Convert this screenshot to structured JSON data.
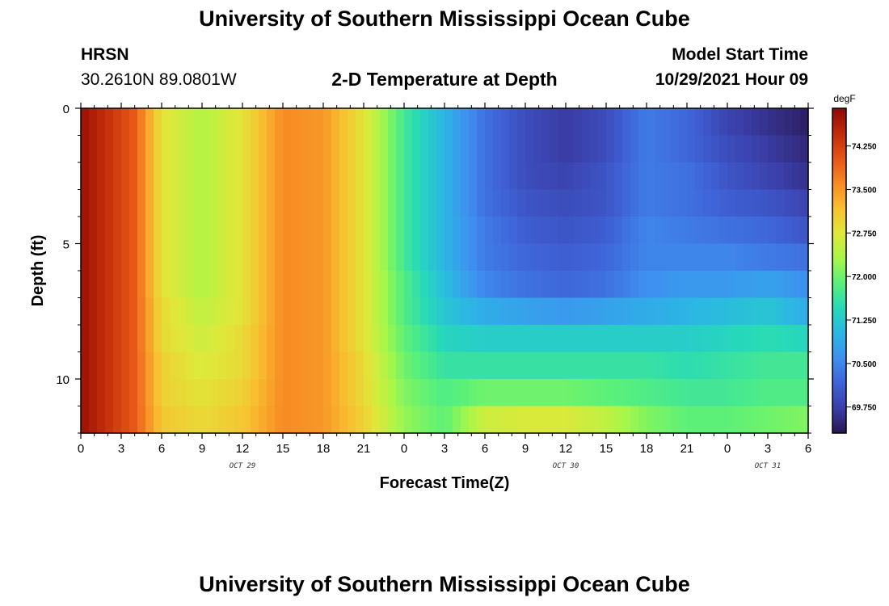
{
  "page": {
    "title_top": "University of Southern Mississippi Ocean Cube",
    "title_bottom": "University of Southern Mississippi Ocean Cube"
  },
  "station": {
    "name": "HRSN",
    "coords": "30.2610N  89.0801W"
  },
  "model_start": {
    "label": "Model Start Time",
    "value": "10/29/2021 Hour 09"
  },
  "colors": {
    "scale": [
      "#2a1650",
      "#3a3ea8",
      "#3f63d8",
      "#3f8ff0",
      "#2bb7e4",
      "#27d9b8",
      "#5af07a",
      "#a8f748",
      "#dfe83a",
      "#f8c030",
      "#f78a24",
      "#e55517",
      "#c02a0a",
      "#8c0a04"
    ]
  },
  "chart_data": {
    "type": "heatmap",
    "title": "2-D Temperature at Depth",
    "xlabel": "Forecast Time(Z)",
    "ylabel": "Depth (ft)",
    "x_range": [
      0,
      54
    ],
    "y_range": [
      0,
      12
    ],
    "y_inverted": true,
    "x_ticks": [
      {
        "pos": 0,
        "label": "0"
      },
      {
        "pos": 3,
        "label": "3"
      },
      {
        "pos": 6,
        "label": "6"
      },
      {
        "pos": 9,
        "label": "9"
      },
      {
        "pos": 12,
        "label": "12"
      },
      {
        "pos": 15,
        "label": "15"
      },
      {
        "pos": 18,
        "label": "18"
      },
      {
        "pos": 21,
        "label": "21"
      },
      {
        "pos": 24,
        "label": "0"
      },
      {
        "pos": 27,
        "label": "3"
      },
      {
        "pos": 30,
        "label": "6"
      },
      {
        "pos": 33,
        "label": "9"
      },
      {
        "pos": 36,
        "label": "12"
      },
      {
        "pos": 39,
        "label": "15"
      },
      {
        "pos": 42,
        "label": "18"
      },
      {
        "pos": 45,
        "label": "21"
      },
      {
        "pos": 48,
        "label": "0"
      },
      {
        "pos": 51,
        "label": "3"
      },
      {
        "pos": 54,
        "label": "6"
      }
    ],
    "date_labels": [
      {
        "pos": 12,
        "label": "OCT 29"
      },
      {
        "pos": 36,
        "label": "OCT 30"
      },
      {
        "pos": 51,
        "label": "OCT 31"
      }
    ],
    "y_ticks": [
      {
        "pos": 0,
        "label": "0"
      },
      {
        "pos": 5,
        "label": "5"
      },
      {
        "pos": 10,
        "label": "10"
      }
    ],
    "colorbar": {
      "unit": "degF",
      "min": 69.3,
      "max": 74.9,
      "ticks": [
        "74.250",
        "73.500",
        "72.750",
        "72.000",
        "71.250",
        "70.500",
        "69.750"
      ],
      "tick_values": [
        74.25,
        73.5,
        72.75,
        72.0,
        71.25,
        70.5,
        69.75
      ]
    },
    "time_hours": [
      0,
      4,
      6,
      9,
      12,
      15,
      18,
      21,
      24,
      27,
      30,
      33,
      36,
      39,
      42,
      45,
      48,
      51,
      54
    ],
    "layer_depths_ft": [
      0.5,
      1.5,
      2.5,
      3.5,
      4.5,
      5.5,
      6.5,
      7.5,
      8.5,
      9.5,
      10.5,
      11.5
    ],
    "temperature_degF": [
      [
        74.8,
        74.0,
        72.8,
        72.4,
        72.8,
        73.6,
        73.5,
        72.8,
        71.7,
        71.0,
        70.3,
        69.9,
        69.7,
        69.9,
        70.4,
        70.2,
        69.8,
        69.6,
        69.4
      ],
      [
        74.8,
        74.0,
        72.8,
        72.4,
        72.8,
        73.6,
        73.5,
        72.8,
        71.7,
        71.0,
        70.3,
        69.9,
        69.7,
        69.9,
        70.4,
        70.2,
        69.9,
        69.7,
        69.5
      ],
      [
        74.8,
        74.0,
        72.8,
        72.4,
        72.8,
        73.6,
        73.5,
        72.8,
        71.7,
        71.0,
        70.3,
        69.9,
        69.8,
        70.0,
        70.4,
        70.3,
        70.0,
        69.8,
        69.6
      ],
      [
        74.8,
        74.0,
        72.8,
        72.4,
        72.8,
        73.6,
        73.5,
        72.8,
        71.7,
        71.0,
        70.3,
        70.0,
        69.9,
        70.0,
        70.4,
        70.3,
        70.1,
        70.0,
        69.8
      ],
      [
        74.8,
        74.0,
        72.8,
        72.4,
        72.8,
        73.6,
        73.5,
        72.8,
        71.7,
        71.0,
        70.4,
        70.1,
        70.0,
        70.1,
        70.5,
        70.4,
        70.3,
        70.2,
        70.0
      ],
      [
        74.8,
        74.0,
        72.8,
        72.4,
        72.8,
        73.6,
        73.5,
        72.8,
        71.7,
        71.0,
        70.4,
        70.2,
        70.1,
        70.2,
        70.5,
        70.5,
        70.5,
        70.4,
        70.3
      ],
      [
        74.8,
        74.0,
        72.8,
        72.4,
        72.8,
        73.6,
        73.5,
        72.8,
        71.8,
        71.1,
        70.5,
        70.3,
        70.2,
        70.3,
        70.6,
        70.7,
        70.7,
        70.8,
        70.6
      ],
      [
        74.8,
        74.0,
        72.9,
        72.5,
        72.8,
        73.6,
        73.5,
        72.8,
        71.8,
        71.2,
        70.9,
        70.8,
        70.7,
        70.8,
        70.9,
        71.0,
        71.1,
        71.2,
        70.9
      ],
      [
        74.8,
        74.0,
        72.9,
        72.6,
        72.9,
        73.6,
        73.5,
        72.8,
        71.9,
        71.4,
        71.3,
        71.3,
        71.3,
        71.3,
        71.3,
        71.3,
        71.4,
        71.5,
        71.4
      ],
      [
        74.8,
        74.0,
        73.0,
        72.7,
        72.9,
        73.6,
        73.5,
        72.9,
        72.0,
        71.6,
        71.6,
        71.6,
        71.6,
        71.6,
        71.6,
        71.5,
        71.6,
        71.7,
        71.7
      ],
      [
        74.8,
        74.0,
        73.0,
        72.8,
        73.0,
        73.6,
        73.5,
        72.9,
        72.1,
        71.8,
        72.0,
        72.0,
        72.0,
        71.9,
        71.8,
        71.7,
        71.7,
        71.8,
        71.8
      ],
      [
        74.8,
        74.0,
        73.1,
        72.9,
        73.1,
        73.6,
        73.5,
        73.0,
        72.2,
        71.9,
        72.6,
        72.7,
        72.7,
        72.5,
        72.1,
        71.9,
        71.9,
        72.0,
        72.1
      ]
    ]
  }
}
